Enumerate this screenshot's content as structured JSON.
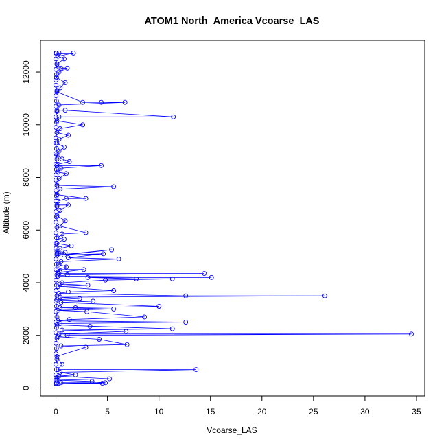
{
  "chart_data": {
    "type": "line",
    "title": "ATOM1 North_America Vcoarse_LAS",
    "xlabel": "Vcoarse_LAS",
    "ylabel": "Altitude (m)",
    "xlim": [
      -1.5,
      35.8
    ],
    "ylim": [
      -300,
      13200
    ],
    "xticks": [
      0,
      5,
      10,
      15,
      20,
      25,
      30,
      35
    ],
    "yticks": [
      0,
      2000,
      4000,
      6000,
      8000,
      10000,
      12000
    ],
    "grid": false,
    "line_color": "#0000ff",
    "marker": "open-circle",
    "series": [
      {
        "x": [
          0.05,
          0.3,
          1.7,
          0.2,
          0.8,
          0.1,
          0.5,
          1.1,
          0.3,
          0.05,
          0.9,
          0.4,
          0.1,
          2.6,
          4.4,
          6.7,
          0.3,
          0.1,
          0.9,
          11.4,
          0.3,
          0.1,
          2.6,
          0.4,
          0.1,
          1.2,
          0.3,
          0.1,
          0.8,
          0.3,
          0.1,
          0.6,
          1.3,
          0.2,
          0.1,
          4.4,
          0.5,
          0.2,
          1.0,
          0.3,
          0.1,
          5.6,
          0.4,
          0.1,
          2.9,
          1.0,
          0.2,
          0.1,
          1.2,
          0.4,
          0.1,
          0.9,
          0.4,
          2.9,
          0.6,
          0.2,
          0.8,
          0.1,
          1.5,
          0.4,
          0.1,
          0.9,
          0.3,
          0.1,
          5.4,
          0.8,
          4.6,
          1.2,
          6.1,
          0.5,
          0.3,
          1.0,
          0.2,
          2.7,
          0.4,
          0.3,
          14.4,
          1.1,
          0.2,
          15.1,
          3.1,
          7.8,
          11.3,
          4.8,
          0.6,
          0.4,
          3.1,
          0.2,
          5.6,
          1.2,
          0.3,
          12.6,
          26.1,
          0.4,
          2.3,
          0.1,
          3.6,
          0.5,
          10.0,
          1.9,
          0.4,
          5.6,
          0.2,
          3.0,
          8.6,
          1.3,
          0.2,
          12.6,
          0.4,
          0.1,
          3.3,
          11.3,
          0.6,
          6.8,
          0.3,
          34.5,
          1.1,
          0.2,
          4.2,
          6.9,
          0.5,
          2.9,
          0.1,
          0.6,
          0.2,
          13.6,
          0.4,
          1.9,
          0.3,
          5.2,
          0.1,
          3.5,
          4.8,
          0.5,
          4.5,
          0.2,
          0.05
        ],
        "y": [
          12720,
          12720,
          12720,
          12600,
          12500,
          12300,
          12150,
          12150,
          12000,
          11800,
          11600,
          11400,
          11250,
          10850,
          10850,
          10850,
          10750,
          10550,
          10550,
          10300,
          10300,
          10150,
          10000,
          9850,
          9700,
          9600,
          9450,
          9300,
          9150,
          9000,
          8850,
          8700,
          8600,
          8500,
          8450,
          8450,
          8350,
          8200,
          8150,
          7950,
          7700,
          7650,
          7550,
          7350,
          7200,
          7200,
          7100,
          6950,
          6950,
          6750,
          6550,
          6350,
          6150,
          5900,
          5850,
          5700,
          5650,
          5500,
          5400,
          5300,
          5200,
          5150,
          5100,
          5050,
          5250,
          5050,
          5100,
          4950,
          4900,
          4800,
          4700,
          4600,
          4500,
          4500,
          4400,
          4350,
          4350,
          4300,
          4250,
          4200,
          4200,
          4150,
          4150,
          4100,
          4000,
          3950,
          3900,
          3850,
          3700,
          3650,
          3600,
          3500,
          3500,
          3450,
          3400,
          3350,
          3300,
          3250,
          3100,
          3050,
          3050,
          3000,
          2950,
          2900,
          2700,
          2600,
          2550,
          2500,
          2450,
          2400,
          2350,
          2250,
          2200,
          2150,
          2050,
          2050,
          2000,
          1950,
          1850,
          1650,
          1600,
          1550,
          1200,
          900,
          700,
          700,
          600,
          500,
          450,
          350,
          300,
          250,
          200,
          200,
          180,
          170,
          160
        ]
      },
      {
        "x": [
          0,
          0,
          0.1,
          0,
          0.05,
          0,
          0,
          0.1,
          0,
          0.05,
          0,
          0.1,
          0,
          0.05,
          0,
          0.1,
          0,
          0,
          0.05,
          0,
          0.1,
          0,
          0.05,
          0,
          0,
          0.1,
          0,
          0.05,
          0,
          0.1,
          0,
          0.05,
          0,
          0.1,
          0,
          0.05,
          0,
          0,
          0.1,
          0,
          0.05,
          0,
          0.1,
          0,
          0.05,
          0,
          0.1,
          0,
          0.05,
          0,
          0.1,
          0,
          0.05,
          0,
          0.1,
          0,
          0.05,
          0,
          0.1,
          0,
          0.05,
          0,
          0.1,
          0,
          0.05,
          0
        ],
        "y": [
          12720,
          12500,
          12300,
          12100,
          11900,
          11700,
          11500,
          11300,
          11100,
          10900,
          10700,
          10500,
          10300,
          10100,
          9900,
          9700,
          9500,
          9300,
          9100,
          8900,
          8700,
          8500,
          8300,
          8100,
          7900,
          7700,
          7500,
          7300,
          7100,
          6900,
          6700,
          6500,
          6300,
          6100,
          5900,
          5700,
          5500,
          5300,
          5100,
          4900,
          4700,
          4500,
          4300,
          4100,
          3900,
          3700,
          3500,
          3300,
          3100,
          2900,
          2700,
          2500,
          2300,
          2100,
          1900,
          1700,
          1500,
          1300,
          1100,
          900,
          700,
          500,
          400,
          300,
          200,
          160
        ]
      }
    ]
  }
}
